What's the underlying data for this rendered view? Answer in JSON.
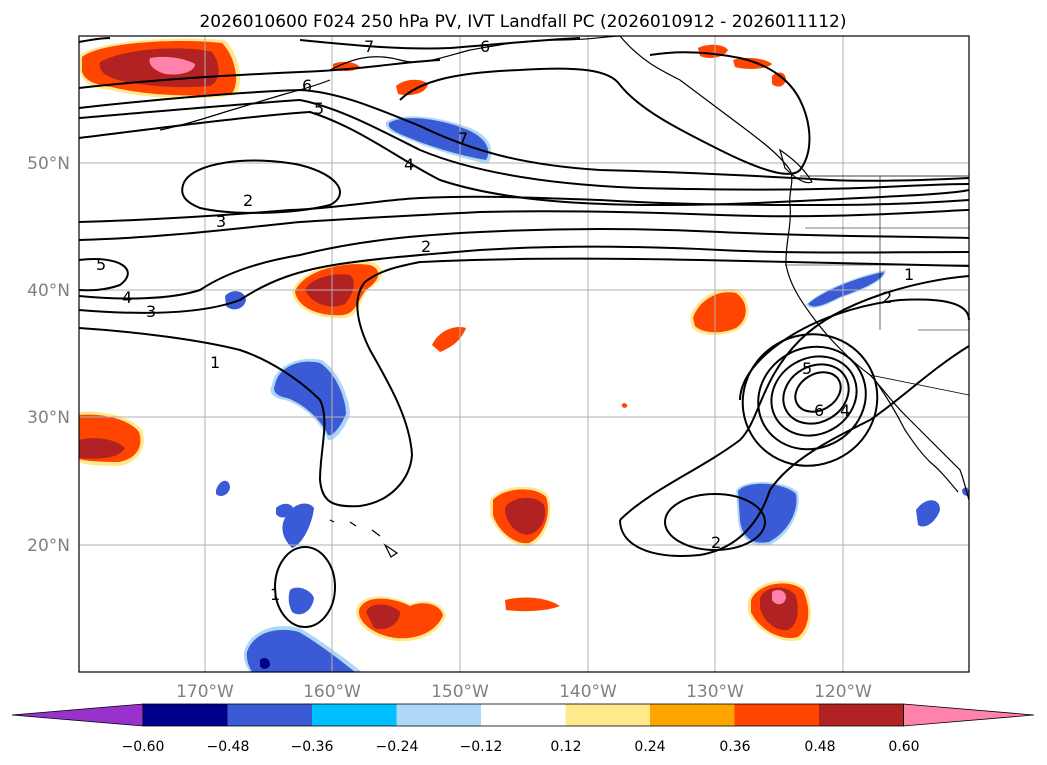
{
  "figure": {
    "title": "2026010600 F024 250 hPa PV, IVT Landfall PC (2026010912 - 2026011112)"
  },
  "map": {
    "lat_labels": [
      "50°N",
      "40°N",
      "30°N",
      "20°N"
    ],
    "lon_labels": [
      "170°W",
      "160°W",
      "150°W",
      "140°W",
      "130°W",
      "120°W"
    ],
    "contour_labels": [
      "7",
      "6",
      "6",
      "5",
      "7",
      "4",
      "2",
      "3",
      "2",
      "5",
      "4",
      "3",
      "1",
      "1",
      "2",
      "5",
      "6",
      "4",
      "2",
      "1"
    ]
  },
  "colorbar": {
    "tick_labels": [
      "−0.60",
      "−0.48",
      "−0.36",
      "−0.24",
      "−0.12",
      "0.12",
      "0.24",
      "0.36",
      "0.48",
      "0.60"
    ],
    "colors": [
      "#9932cc",
      "#00008b",
      "#3b5bd6",
      "#00bfff",
      "#add8f5",
      "#ffffff",
      "#ffe98c",
      "#ffa500",
      "#ff4500",
      "#b22222",
      "#ff82ab"
    ]
  }
}
